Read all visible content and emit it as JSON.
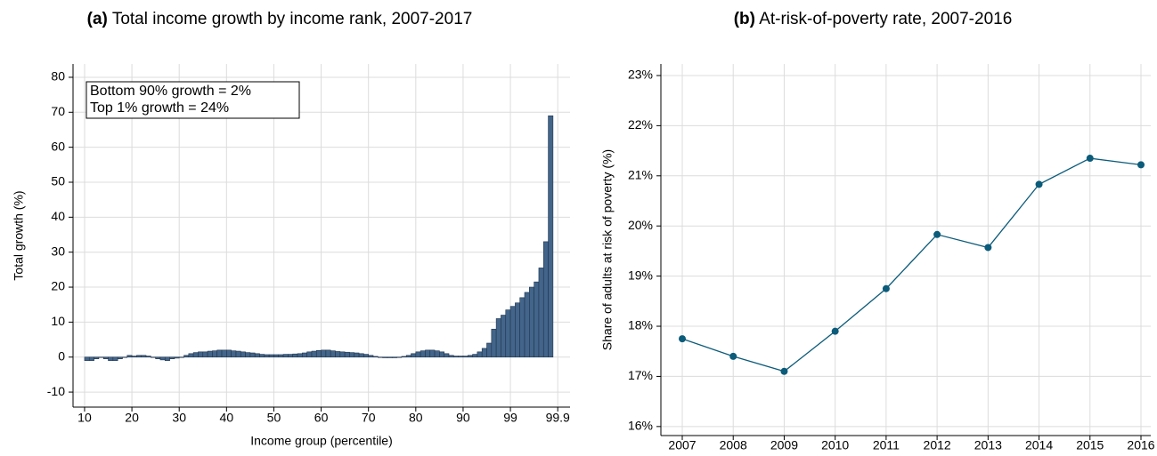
{
  "chart_data": [
    {
      "type": "histogram",
      "label": "(a)",
      "title": "Total income growth by income rank, 2007-2017",
      "xlabel": "Income group (percentile)",
      "ylabel": "Total growth (%)",
      "annotations": [
        "Bottom 90% growth = 2%",
        "Top 1% growth = 24%"
      ],
      "color": "#436589",
      "edgecolor": "#1f3550",
      "grid": true,
      "bins": [
        0,
        1,
        2,
        3,
        4,
        5,
        6,
        7,
        8,
        9,
        10,
        11,
        12,
        13,
        14,
        15,
        16,
        17,
        18,
        19,
        20,
        21,
        22,
        23,
        24,
        25,
        26,
        27,
        28,
        29,
        30,
        31,
        32,
        33,
        34,
        35,
        36,
        37,
        38,
        39,
        40,
        41,
        42,
        43,
        44,
        45,
        46,
        47,
        48,
        49,
        50,
        51,
        52,
        53,
        54,
        55,
        56,
        57,
        58,
        59,
        60,
        61,
        62,
        63,
        64,
        65,
        66,
        67,
        68,
        69,
        70,
        71,
        72,
        73,
        74,
        75,
        76,
        77,
        78,
        79,
        80,
        81,
        82,
        83,
        84,
        85,
        86,
        87,
        88,
        89,
        90,
        91,
        92,
        93,
        94,
        95,
        96,
        97,
        98,
        99
      ],
      "values": [
        -1,
        -1,
        -0.5,
        0,
        -0.5,
        -1,
        -1,
        -0.5,
        0,
        0.5,
        0.3,
        0.5,
        0.5,
        0.3,
        0,
        -0.5,
        -0.8,
        -1,
        -0.5,
        -0.3,
        0,
        0.5,
        1,
        1.3,
        1.5,
        1.5,
        1.7,
        1.8,
        2,
        2,
        2,
        1.8,
        1.7,
        1.5,
        1.3,
        1.2,
        1,
        0.8,
        0.7,
        0.7,
        0.7,
        0.7,
        0.8,
        0.8,
        0.9,
        1,
        1.2,
        1.5,
        1.7,
        1.9,
        2,
        2,
        1.8,
        1.6,
        1.5,
        1.4,
        1.3,
        1.2,
        1,
        0.8,
        0.5,
        0.2,
        0,
        -0.2,
        -0.2,
        -0.2,
        0,
        0.2,
        0.5,
        1,
        1.5,
        1.8,
        2,
        2,
        1.8,
        1.5,
        1,
        0.5,
        0.3,
        0.3,
        0.3,
        0.5,
        0.8,
        1.5,
        2.5,
        4,
        8,
        11,
        12,
        13.5,
        14.5,
        15.5,
        17,
        18.5,
        20,
        21.5,
        25.5,
        33,
        69
      ],
      "xlim": [
        -2.44,
        102.6
      ],
      "xticks": [
        {
          "value": 0,
          "label": "10"
        },
        {
          "value": 10,
          "label": "20"
        },
        {
          "value": 20,
          "label": "30"
        },
        {
          "value": 30,
          "label": "40"
        },
        {
          "value": 40,
          "label": "50"
        },
        {
          "value": 50,
          "label": "60"
        },
        {
          "value": 60,
          "label": "70"
        },
        {
          "value": 70,
          "label": "80"
        },
        {
          "value": 80,
          "label": "90"
        },
        {
          "value": 90,
          "label": "99"
        },
        {
          "value": 100,
          "label": "99.9"
        }
      ],
      "ylim": [
        -14.3,
        83.8
      ],
      "yticks": [
        -10,
        0,
        10,
        20,
        30,
        40,
        50,
        60,
        70,
        80
      ]
    },
    {
      "type": "line",
      "label": "(b)",
      "title": "At-risk-of-poverty rate, 2007-2016",
      "ylabel": "Share of adults at risk of poverty (%)",
      "color": "#0b5b7a",
      "grid": true,
      "categories": [
        "2007",
        "2008",
        "2009",
        "2010",
        "2011",
        "2012",
        "2013",
        "2014",
        "2015",
        "2016"
      ],
      "values": [
        17.75,
        17.4,
        17.1,
        17.9,
        18.75,
        19.83,
        19.57,
        20.83,
        21.35,
        21.22
      ],
      "ylim": [
        15.82,
        23.23
      ],
      "yticks": [
        {
          "value": 16,
          "label": "16%"
        },
        {
          "value": 17,
          "label": "17%"
        },
        {
          "value": 18,
          "label": "18%"
        },
        {
          "value": 19,
          "label": "19%"
        },
        {
          "value": 20,
          "label": "20%"
        },
        {
          "value": 21,
          "label": "21%"
        },
        {
          "value": 22,
          "label": "22%"
        },
        {
          "value": 23,
          "label": "23%"
        }
      ]
    }
  ]
}
